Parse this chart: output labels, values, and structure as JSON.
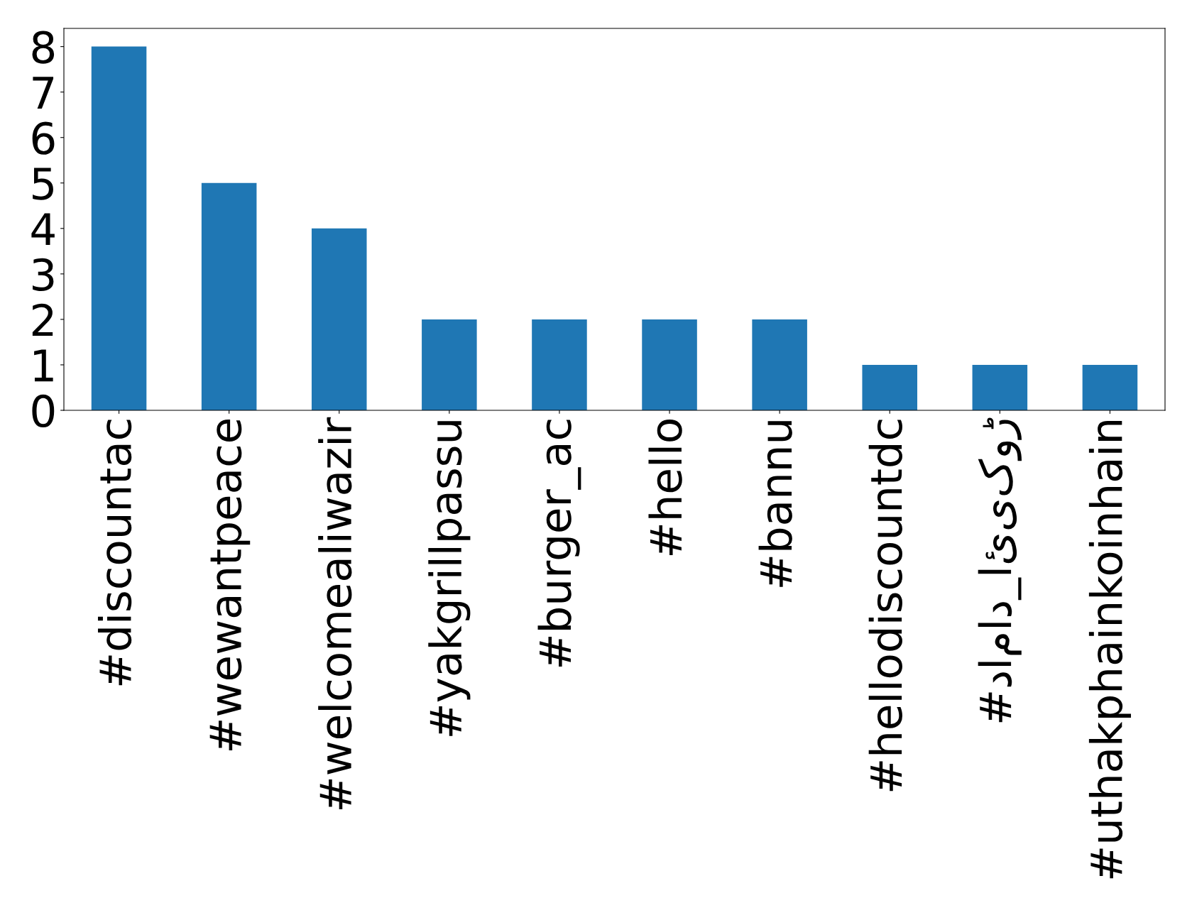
{
  "chart_data": {
    "type": "bar",
    "categories": [
      "#discountac",
      "#wewantpeace",
      "#welcomealiwazir",
      "#yakgrillpassu",
      "#burger_ac",
      "#hello",
      "#bannu",
      "#hellodiscountdc",
      "#داماد_‌ائیکوڑ",
      "#uthakphainkoinhain"
    ],
    "values": [
      8,
      5,
      4,
      2,
      2,
      2,
      2,
      1,
      1,
      1
    ],
    "color": "#1f77b4",
    "ylim": [
      0,
      8.4
    ],
    "yticks": [
      0,
      1,
      2,
      3,
      4,
      5,
      6,
      7,
      8
    ],
    "grid": false,
    "legend": false
  }
}
